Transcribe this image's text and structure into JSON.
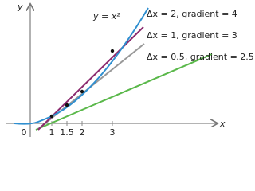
{
  "axes": {
    "x_label": "x",
    "y_label": "y",
    "x_ticks": [
      "0",
      "1",
      "1.5",
      "2",
      "3"
    ]
  },
  "curve_label": "y = x²",
  "lines": [
    {
      "label": "Δx = 2, gradient = 4"
    },
    {
      "label": "Δx = 1, gradient = 3"
    },
    {
      "label": "Δx = 0.5, gradient = 2.5"
    }
  ]
}
